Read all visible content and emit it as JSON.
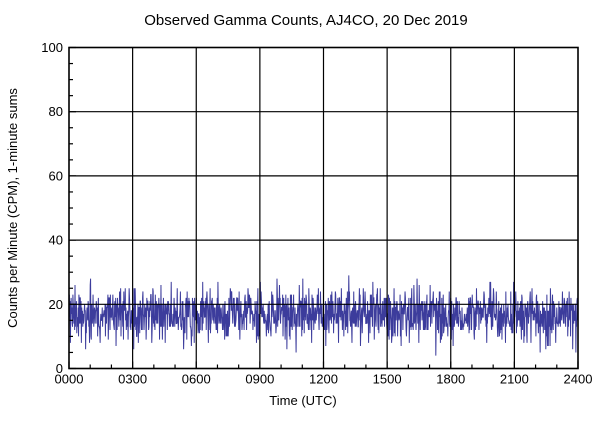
{
  "chart_data": {
    "type": "line",
    "title": "Observed Gamma Counts, AJ4CO, 20 Dec 2019",
    "xlabel": "Time (UTC)",
    "ylabel": "Counts per Minute (CPM), 1-minute sums",
    "xlim_hours": [
      0,
      24
    ],
    "ylim": [
      0,
      100
    ],
    "xticks": [
      "0000",
      "0300",
      "0600",
      "0900",
      "1200",
      "1500",
      "1800",
      "2100",
      "2400"
    ],
    "yticks": [
      "0",
      "20",
      "40",
      "60",
      "80",
      "100"
    ],
    "x_major_interval_hours": 3,
    "x_minor_interval_hours": 1,
    "y_major_interval": 20,
    "y_minor_interval": 5,
    "grid": "major gridlines on, solid black, drawn over trace",
    "legend": "none",
    "line_color": "#3c3c9c",
    "axis_color": "#000000",
    "background_color": "#ffffff",
    "series": [
      {
        "name": "observed-gamma-counts",
        "points": 1440,
        "sample_interval_minutes": 1,
        "mean_cpm": 17,
        "std_cpm": 4.2,
        "observed_min_cpm": 4,
        "observed_max_cpm": 30,
        "character": "stationary Poisson-like noise band spanning the full day, no trend",
        "seed": 20191220
      }
    ]
  }
}
